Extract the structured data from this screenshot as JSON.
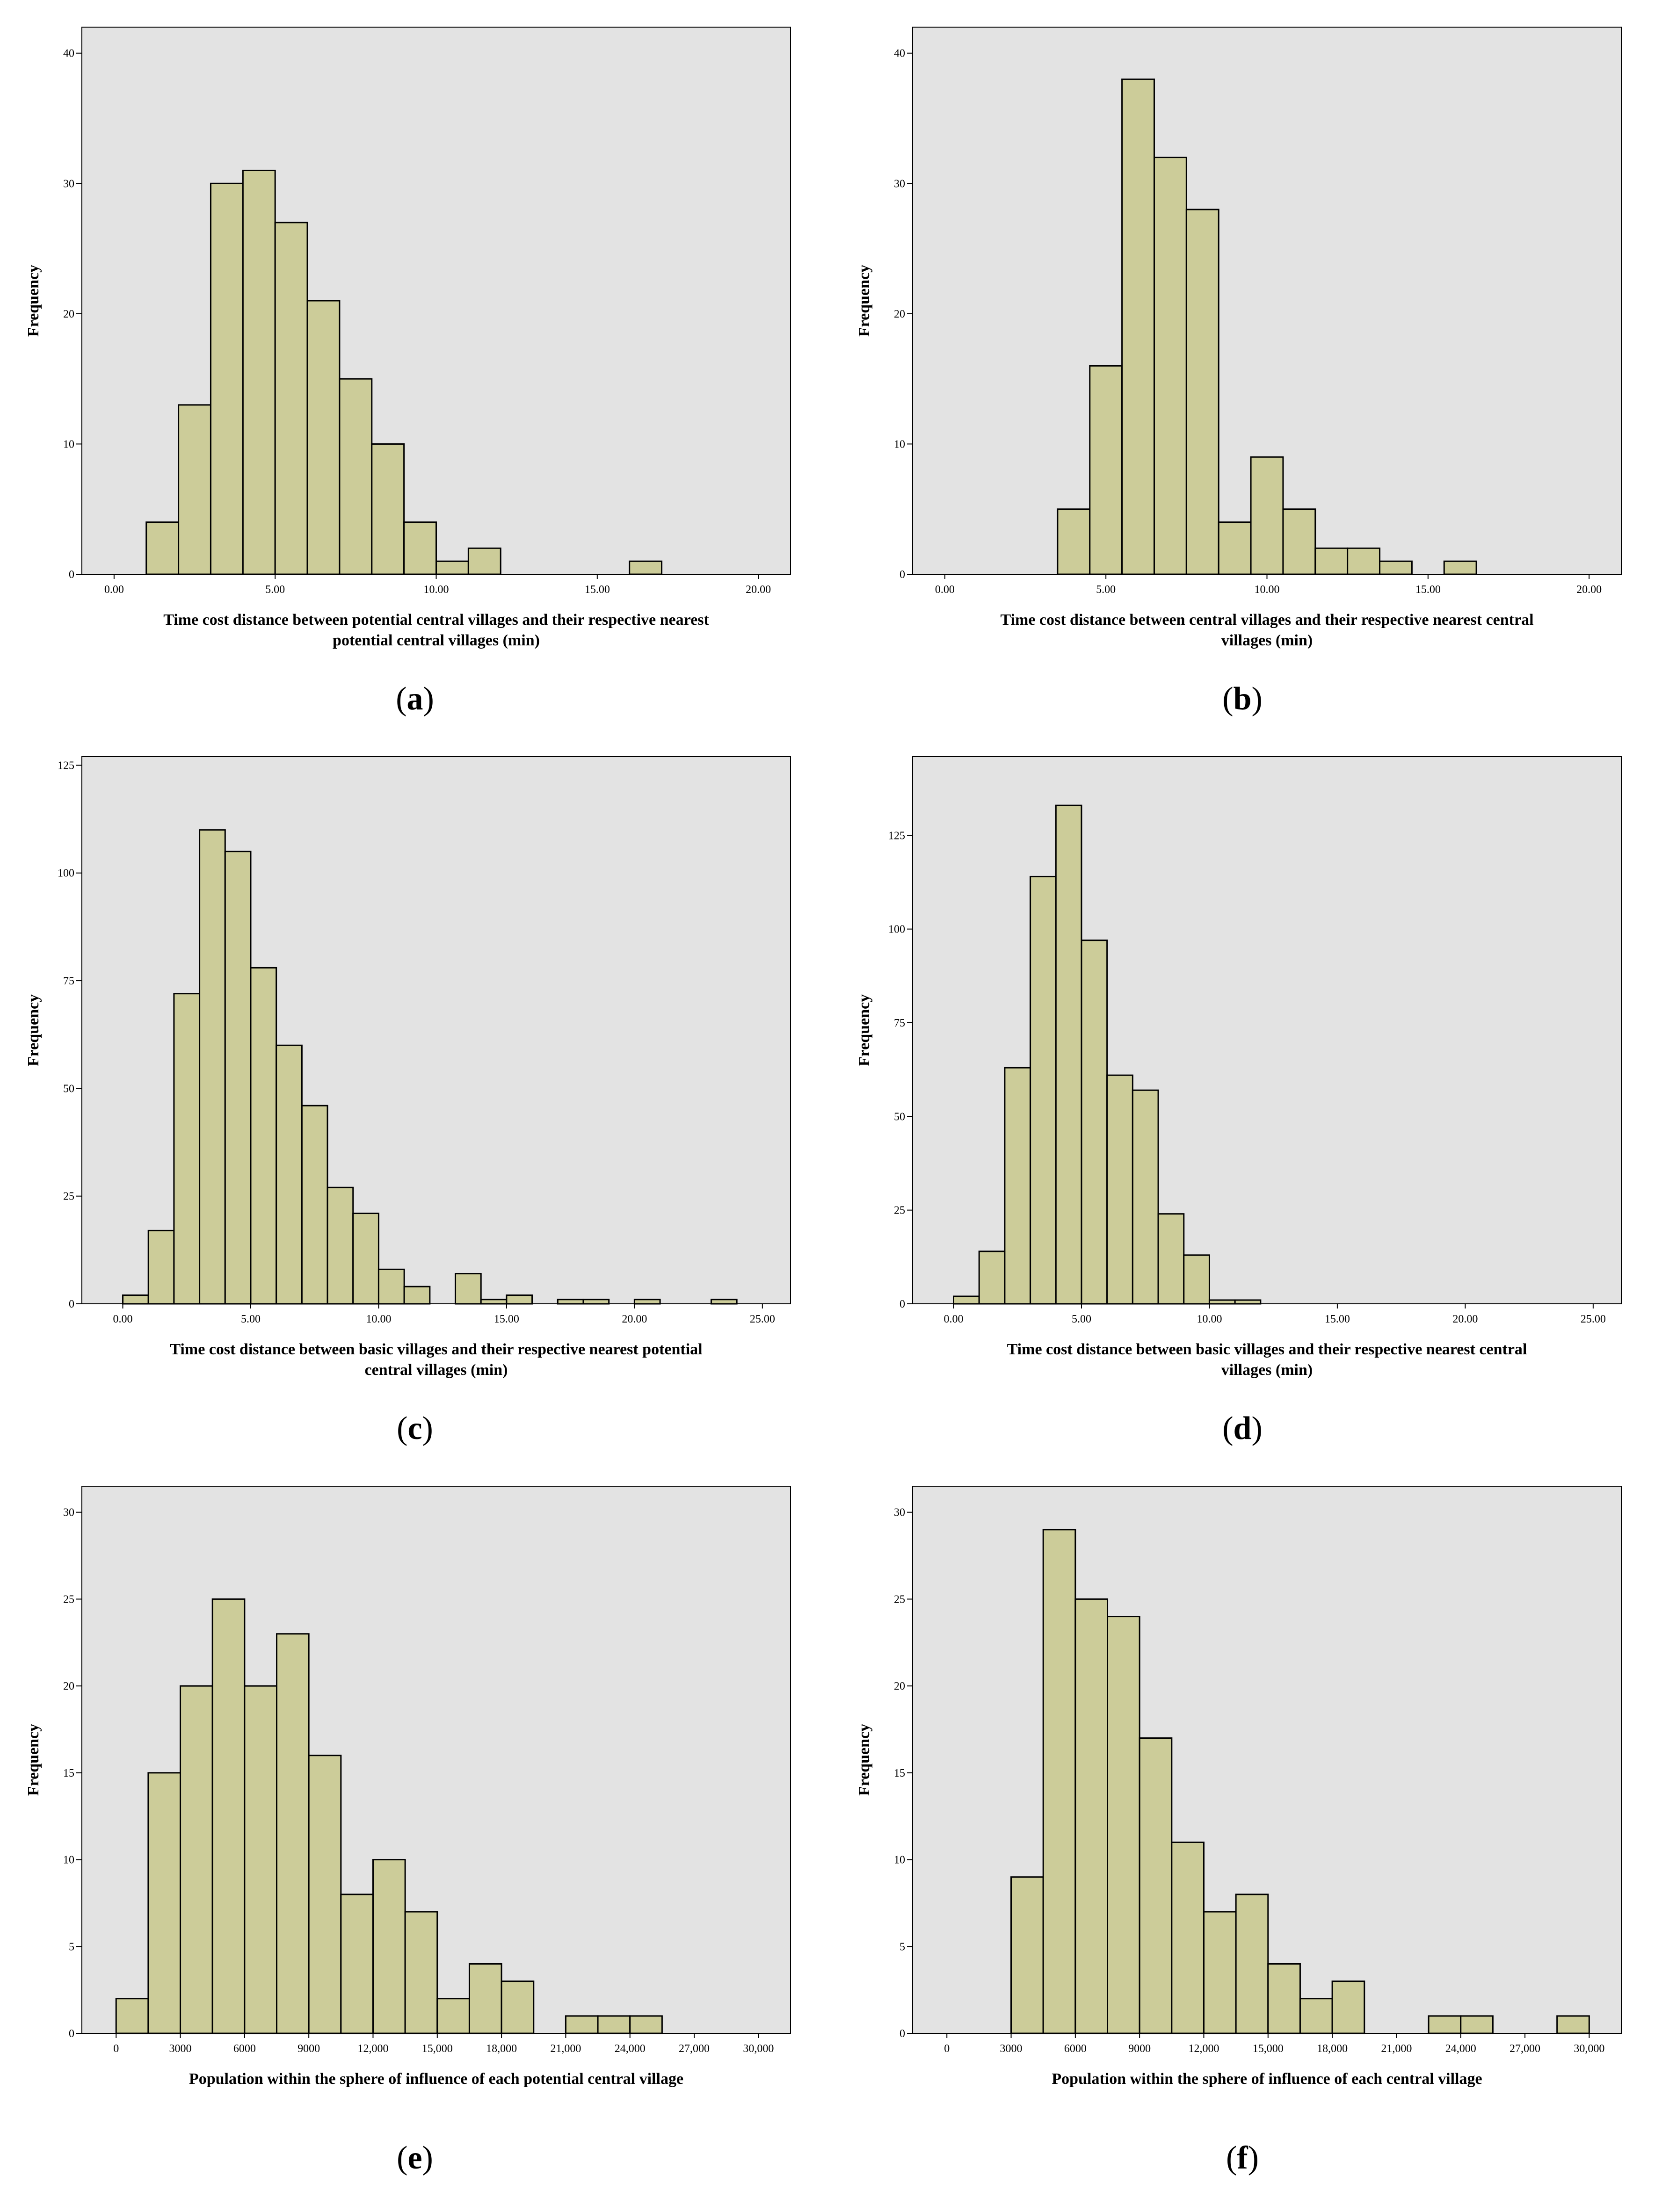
{
  "colors": {
    "plot_background": "#e3e3e3",
    "bar_fill": "#cccc99",
    "bar_stroke": "#000000"
  },
  "chart_data": [
    {
      "id": "a",
      "type": "bar",
      "caption_letter": "a",
      "caption_open": "(",
      "caption_close": ")",
      "ylabel": "Frequency",
      "xlabel_lines": [
        "Time cost distance between potential central villages and their respective nearest",
        "potential central villages (min)"
      ],
      "xlim": [
        -1,
        21
      ],
      "ylim": [
        0,
        42
      ],
      "xticks": [
        0,
        5,
        10,
        15,
        20
      ],
      "xtick_labels": [
        "0.00",
        "5.00",
        "10.00",
        "15.00",
        "20.00"
      ],
      "yticks": [
        0,
        10,
        20,
        30,
        40
      ],
      "ytick_labels": [
        "0",
        "10",
        "20",
        "30",
        "40"
      ],
      "bin_width": 1,
      "bins": [
        {
          "x": 1,
          "v": 4
        },
        {
          "x": 2,
          "v": 13
        },
        {
          "x": 3,
          "v": 30
        },
        {
          "x": 4,
          "v": 31
        },
        {
          "x": 5,
          "v": 27
        },
        {
          "x": 6,
          "v": 21
        },
        {
          "x": 7,
          "v": 15
        },
        {
          "x": 8,
          "v": 10
        },
        {
          "x": 9,
          "v": 4
        },
        {
          "x": 10,
          "v": 1
        },
        {
          "x": 11,
          "v": 2
        },
        {
          "x": 16,
          "v": 1
        }
      ]
    },
    {
      "id": "b",
      "type": "bar",
      "caption_letter": "b",
      "caption_open": "(",
      "caption_close": ")",
      "ylabel": "Frequency",
      "xlabel_lines": [
        "Time cost distance between central villages and their respective nearest central",
        "villages (min)"
      ],
      "xlim": [
        -1,
        21
      ],
      "ylim": [
        0,
        42
      ],
      "xticks": [
        0,
        5,
        10,
        15,
        20
      ],
      "xtick_labels": [
        "0.00",
        "5.00",
        "10.00",
        "15.00",
        "20.00"
      ],
      "yticks": [
        0,
        10,
        20,
        30,
        40
      ],
      "ytick_labels": [
        "0",
        "10",
        "20",
        "30",
        "40"
      ],
      "bin_width": 1,
      "bins": [
        {
          "x": 3.5,
          "v": 5
        },
        {
          "x": 4.5,
          "v": 16
        },
        {
          "x": 5.5,
          "v": 38
        },
        {
          "x": 6.5,
          "v": 32
        },
        {
          "x": 7.5,
          "v": 28
        },
        {
          "x": 8.5,
          "v": 4
        },
        {
          "x": 9.5,
          "v": 9
        },
        {
          "x": 10.5,
          "v": 5
        },
        {
          "x": 11.5,
          "v": 2
        },
        {
          "x": 12.5,
          "v": 2
        },
        {
          "x": 13.5,
          "v": 1
        },
        {
          "x": 15.5,
          "v": 1
        }
      ]
    },
    {
      "id": "c",
      "type": "bar",
      "caption_letter": "c",
      "caption_open": "(",
      "caption_close": ")",
      "ylabel": "Frequency",
      "xlabel_lines": [
        "Time cost distance between basic villages and their respective nearest potential",
        "central villages (min)"
      ],
      "xlim": [
        -1.6,
        26.1
      ],
      "ylim": [
        0,
        127
      ],
      "xticks": [
        0,
        5,
        10,
        15,
        20,
        25
      ],
      "xtick_labels": [
        "0.00",
        "5.00",
        "10.00",
        "15.00",
        "20.00",
        "25.00"
      ],
      "yticks": [
        0,
        25,
        50,
        75,
        100,
        125
      ],
      "ytick_labels": [
        "0",
        "25",
        "50",
        "75",
        "100",
        "125"
      ],
      "bin_width": 1,
      "bins": [
        {
          "x": 0,
          "v": 2
        },
        {
          "x": 1,
          "v": 17
        },
        {
          "x": 2,
          "v": 72
        },
        {
          "x": 3,
          "v": 110
        },
        {
          "x": 4,
          "v": 105
        },
        {
          "x": 5,
          "v": 78
        },
        {
          "x": 6,
          "v": 60
        },
        {
          "x": 7,
          "v": 46
        },
        {
          "x": 8,
          "v": 27
        },
        {
          "x": 9,
          "v": 21
        },
        {
          "x": 10,
          "v": 8
        },
        {
          "x": 11,
          "v": 4
        },
        {
          "x": 13,
          "v": 7
        },
        {
          "x": 14,
          "v": 1
        },
        {
          "x": 15,
          "v": 2
        },
        {
          "x": 17,
          "v": 1
        },
        {
          "x": 18,
          "v": 1
        },
        {
          "x": 20,
          "v": 1
        },
        {
          "x": 23,
          "v": 1
        }
      ]
    },
    {
      "id": "d",
      "type": "bar",
      "caption_letter": "d",
      "caption_open": "(",
      "caption_close": ")",
      "ylabel": "Frequency",
      "xlabel_lines": [
        "Time cost distance between basic villages and their respective nearest central",
        "villages (min)"
      ],
      "xlim": [
        -1.6,
        26.1
      ],
      "ylim": [
        0,
        146
      ],
      "xticks": [
        0,
        5,
        10,
        15,
        20,
        25
      ],
      "xtick_labels": [
        "0.00",
        "5.00",
        "10.00",
        "15.00",
        "20.00",
        "25.00"
      ],
      "yticks": [
        0,
        25,
        50,
        75,
        100,
        125
      ],
      "ytick_labels": [
        "0",
        "25",
        "50",
        "75",
        "100",
        "125"
      ],
      "bin_width": 1,
      "bins": [
        {
          "x": 0,
          "v": 2
        },
        {
          "x": 1,
          "v": 14
        },
        {
          "x": 2,
          "v": 63
        },
        {
          "x": 3,
          "v": 114
        },
        {
          "x": 4,
          "v": 133
        },
        {
          "x": 5,
          "v": 97
        },
        {
          "x": 6,
          "v": 61
        },
        {
          "x": 7,
          "v": 57
        },
        {
          "x": 8,
          "v": 24
        },
        {
          "x": 9,
          "v": 13
        },
        {
          "x": 10,
          "v": 1
        },
        {
          "x": 11,
          "v": 1
        }
      ]
    },
    {
      "id": "e",
      "type": "bar",
      "caption_letter": "e",
      "caption_open": "(",
      "caption_close": ")",
      "ylabel": "Frequency",
      "xlabel_lines": [
        "Population within the sphere of influence of each potential central village"
      ],
      "xlim": [
        -1600,
        31500
      ],
      "ylim": [
        0,
        31.5
      ],
      "xticks": [
        0,
        3000,
        6000,
        9000,
        12000,
        15000,
        18000,
        21000,
        24000,
        27000,
        30000
      ],
      "xtick_labels": [
        "0",
        "3000",
        "6000",
        "9000",
        "12,000",
        "15,000",
        "18,000",
        "21,000",
        "24,000",
        "27,000",
        "30,000"
      ],
      "yticks": [
        0,
        5,
        10,
        15,
        20,
        25,
        30
      ],
      "ytick_labels": [
        "0",
        "5",
        "10",
        "15",
        "20",
        "25",
        "30"
      ],
      "bin_width": 1500,
      "bins": [
        {
          "x": 0,
          "v": 2
        },
        {
          "x": 1500,
          "v": 15
        },
        {
          "x": 3000,
          "v": 20
        },
        {
          "x": 4500,
          "v": 25
        },
        {
          "x": 6000,
          "v": 20
        },
        {
          "x": 7500,
          "v": 23
        },
        {
          "x": 9000,
          "v": 16
        },
        {
          "x": 10500,
          "v": 8
        },
        {
          "x": 12000,
          "v": 10
        },
        {
          "x": 13500,
          "v": 7
        },
        {
          "x": 15000,
          "v": 2
        },
        {
          "x": 16500,
          "v": 4
        },
        {
          "x": 18000,
          "v": 3
        },
        {
          "x": 21000,
          "v": 1
        },
        {
          "x": 22500,
          "v": 1
        },
        {
          "x": 24000,
          "v": 1
        }
      ]
    },
    {
      "id": "f",
      "type": "bar",
      "caption_letter": "f",
      "caption_open": "(",
      "caption_close": ")",
      "ylabel": "Frequency",
      "xlabel_lines": [
        "Population within the sphere of influence of each central village"
      ],
      "xlim": [
        -1600,
        31500
      ],
      "ylim": [
        0,
        31.5
      ],
      "xticks": [
        0,
        3000,
        6000,
        9000,
        12000,
        15000,
        18000,
        21000,
        24000,
        27000,
        30000
      ],
      "xtick_labels": [
        "0",
        "3000",
        "6000",
        "9000",
        "12,000",
        "15,000",
        "18,000",
        "21,000",
        "24,000",
        "27,000",
        "30,000"
      ],
      "yticks": [
        0,
        5,
        10,
        15,
        20,
        25,
        30
      ],
      "ytick_labels": [
        "0",
        "5",
        "10",
        "15",
        "20",
        "25",
        "30"
      ],
      "bin_width": 1500,
      "bins": [
        {
          "x": 3000,
          "v": 9
        },
        {
          "x": 4500,
          "v": 29
        },
        {
          "x": 6000,
          "v": 25
        },
        {
          "x": 7500,
          "v": 24
        },
        {
          "x": 9000,
          "v": 17
        },
        {
          "x": 10500,
          "v": 11
        },
        {
          "x": 12000,
          "v": 7
        },
        {
          "x": 13500,
          "v": 8
        },
        {
          "x": 15000,
          "v": 4
        },
        {
          "x": 16500,
          "v": 2
        },
        {
          "x": 18000,
          "v": 3
        },
        {
          "x": 22500,
          "v": 1
        },
        {
          "x": 24000,
          "v": 1
        },
        {
          "x": 28500,
          "v": 1
        }
      ]
    }
  ]
}
